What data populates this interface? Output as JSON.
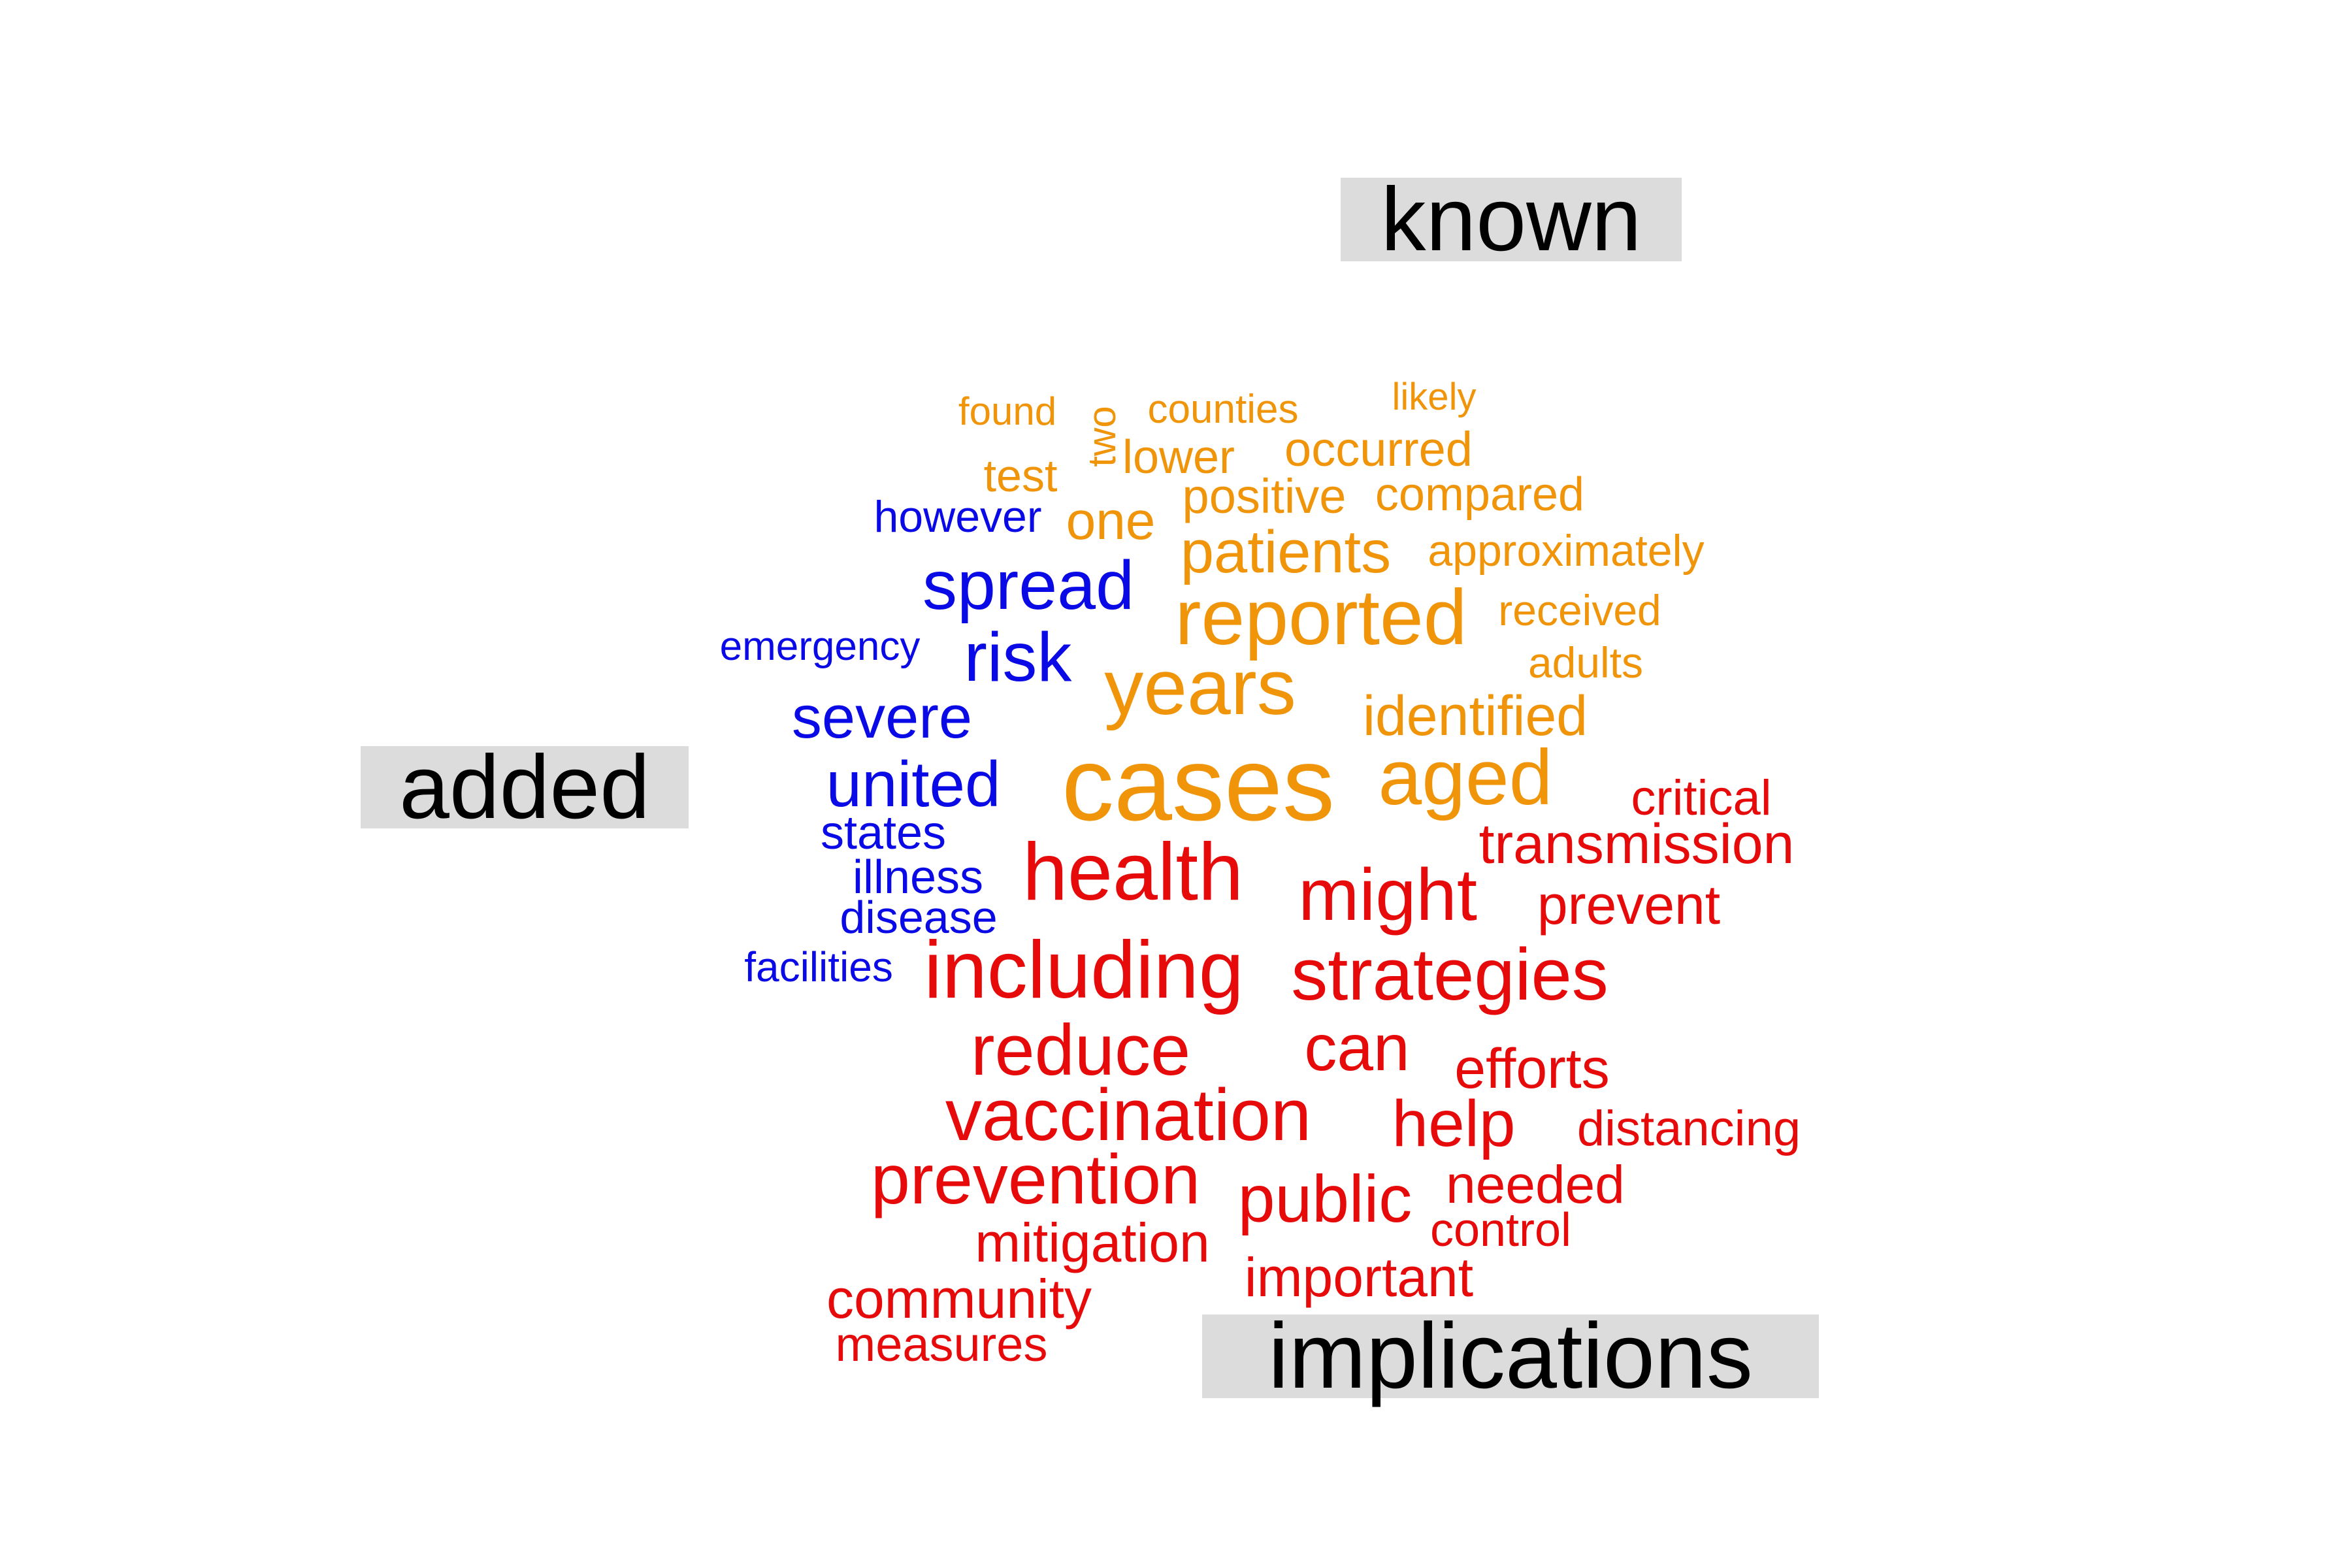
{
  "colors": {
    "known": "#f0950a",
    "added": "#0a0ae6",
    "implications": "#e60a0a",
    "label_box": "#dcdcdc"
  },
  "groups": {
    "known": "known",
    "added": "added",
    "implications": "implications"
  },
  "words": {
    "known": [
      "found",
      "two",
      "counties",
      "likely",
      "occurred",
      "lower",
      "test",
      "positive",
      "compared",
      "one",
      "patients",
      "approximately",
      "reported",
      "received",
      "years",
      "adults",
      "identified",
      "cases",
      "aged"
    ],
    "added": [
      "however",
      "spread",
      "emergency",
      "risk",
      "severe",
      "united",
      "states",
      "illness",
      "disease",
      "facilities"
    ],
    "implications": [
      "critical",
      "transmission",
      "health",
      "might",
      "prevent",
      "including",
      "strategies",
      "reduce",
      "can",
      "efforts",
      "vaccination",
      "help",
      "distancing",
      "prevention",
      "needed",
      "public",
      "control",
      "mitigation",
      "important",
      "community",
      "measures"
    ]
  }
}
